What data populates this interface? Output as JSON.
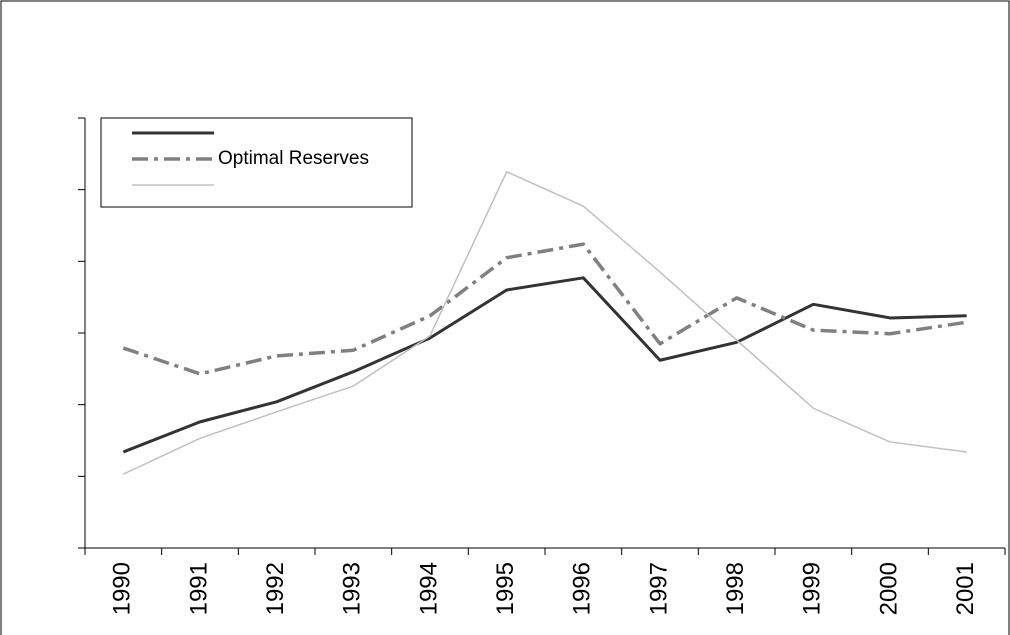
{
  "chart_data": {
    "type": "line",
    "categories": [
      "1990",
      "1991",
      "1992",
      "1993",
      "1994",
      "1995",
      "1996",
      "1997",
      "1998",
      "1999",
      "2000",
      "2001"
    ],
    "series": [
      {
        "color": "#333333",
        "values": [
          1.34,
          1.76,
          2.04,
          2.46,
          2.93,
          3.6,
          3.77,
          2.62,
          2.87,
          3.4,
          3.21,
          3.24
        ]
      },
      {
        "name": "Optimal Reserves",
        "color": "#808080",
        "values": [
          2.79,
          2.43,
          2.68,
          2.76,
          3.24,
          4.05,
          4.24,
          2.85,
          3.49,
          3.04,
          2.99,
          3.15
        ]
      },
      {
        "color": "#c0c0c0",
        "values": [
          1.03,
          1.53,
          1.9,
          2.26,
          2.96,
          5.25,
          4.77,
          3.85,
          2.9,
          1.95,
          1.48,
          1.34
        ]
      }
    ],
    "ylim": [
      0,
      6
    ],
    "yticks": [
      0,
      1,
      2,
      3,
      4,
      5,
      6
    ],
    "legend": "upper left"
  }
}
